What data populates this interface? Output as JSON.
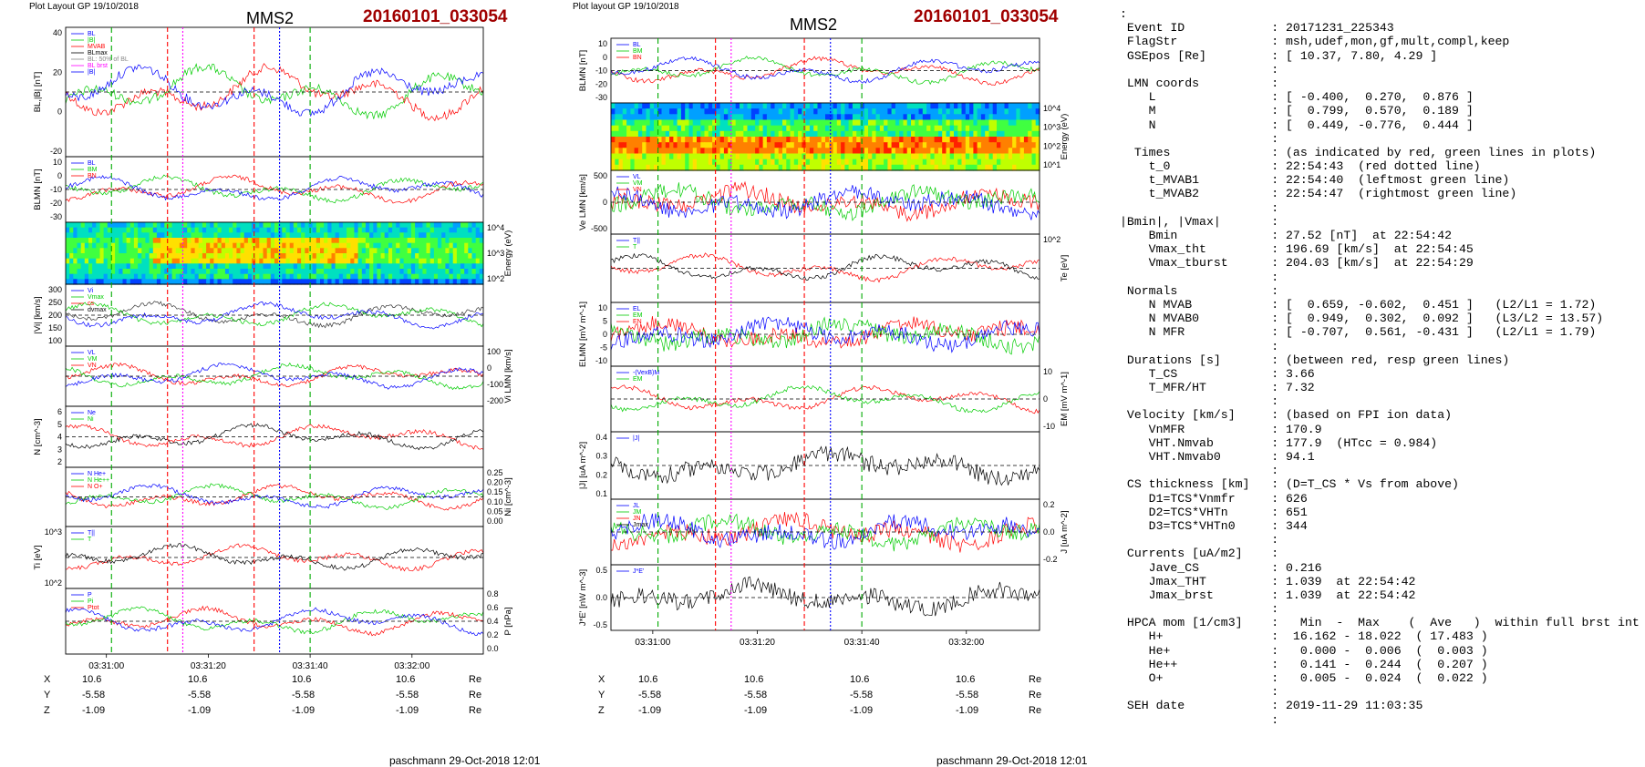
{
  "left_figure": {
    "layout_label": "Plot Layout GP 19/10/2018",
    "spacecraft": "MMS2",
    "event_date": "20160101_033054",
    "footer": "paschmann 29-Oct-2018 12:01",
    "time_ticks": [
      "03:31:00",
      "03:31:20",
      "03:31:40",
      "03:32:00"
    ],
    "coords": [
      {
        "axis": "X",
        "values": [
          "10.6",
          "10.6",
          "10.6",
          "10.6",
          "10.6"
        ],
        "unit": "Re"
      },
      {
        "axis": "Y",
        "values": [
          "-5.58",
          "-5.58",
          "-5.58",
          "-5.58",
          "-5.58"
        ],
        "unit": "Re"
      },
      {
        "axis": "Z",
        "values": [
          "-1.09",
          "-1.09",
          "-1.09",
          "-1.09",
          "-1.09"
        ],
        "unit": "Re"
      }
    ]
  },
  "right_figure": {
    "layout_label": "Plot layout GP 19/10/2018",
    "spacecraft": "MMS2",
    "event_date": "20160101_033054",
    "footer": "paschmann 29-Oct-2018 12:01",
    "time_ticks": [
      "03:31:00",
      "03:31:20",
      "03:31:40",
      "03:32:00"
    ],
    "coords": [
      {
        "axis": "X",
        "values": [
          "10.6",
          "10.6",
          "10.6",
          "10.6",
          "10.6"
        ],
        "unit": "Re"
      },
      {
        "axis": "Y",
        "values": [
          "-5.58",
          "-5.58",
          "-5.58",
          "-5.58",
          "-5.58"
        ],
        "unit": "Re"
      },
      {
        "axis": "Z",
        "values": [
          "-1.09",
          "-1.09",
          "-1.09",
          "-1.09",
          "-1.09"
        ],
        "unit": "Re"
      }
    ]
  },
  "summary_lines": [
    ":",
    " Event ID            : 20171231_225343",
    " FlagStr             : msh,udef,mon,gf,mult,compl,keep",
    " GSEpos [Re]         : [ 10.37, 7.80, 4.29 ]",
    "                     :",
    " LMN coords          :",
    "    L                : [ -0.400,  0.270,  0.876 ]",
    "    M                : [  0.799,  0.570,  0.189 ]",
    "    N                : [  0.449, -0.776,  0.444 ]",
    "                     :",
    "  Times              : (as indicated by red, green lines in plots)",
    "    t_0              : 22:54:43  (red dotted line)",
    "    t_MVAB1          : 22:54:40  (leftmost green line)",
    "    t_MVAB2          : 22:54:47  (rightmost green line)",
    "                     :",
    "|Bmin|, |Vmax|       :",
    "    Bmin             : 27.52 [nT]  at 22:54:42",
    "    Vmax_tht         : 196.69 [km/s]  at 22:54:45",
    "    Vmax_tburst      : 204.03 [km/s]  at 22:54:29",
    "                     :",
    " Normals             :",
    "    N MVAB           : [  0.659, -0.602,  0.451 ]   (L2/L1 = 1.72)",
    "    N MVAB0          : [  0.949,  0.302,  0.092 ]   (L3/L2 = 13.57)",
    "    N MFR            : [ -0.707,  0.561, -0.431 ]   (L2/L1 = 1.79)",
    "                     :",
    " Durations [s]       : (between red, resp green lines)",
    "    T_CS             : 3.66",
    "    T_MFR/HT         : 7.32",
    "                     :",
    " Velocity [km/s]     : (based on FPI ion data)",
    "    VnMFR            : 170.9",
    "    VHT.Nmvab        : 177.9  (HTcc = 0.984)",
    "    VHT.Nmvab0       : 94.1",
    "                     :",
    " CS thickness [km]   : (D=T_CS * Vs from above)",
    "    D1=TCS*Vnmfr     : 626",
    "    D2=TCS*VHTn      : 651",
    "    D3=TCS*VHTn0     : 344",
    "                     :",
    " Currents [uA/m2]    :",
    "    Jave_CS          : 0.216",
    "    Jmax_THT         : 1.039  at 22:54:42",
    "    Jmax_brst        : 1.039  at 22:54:42",
    "                     :",
    " HPCA mom [1/cm3]    :   Min  -  Max    (  Ave   )  within full brst int",
    "    H+               :  16.162 - 18.022  ( 17.483 )",
    "    He+              :   0.000 -  0.006  (  0.003 )",
    "    He++             :   0.141 -  0.244  (  0.207 )",
    "    O+               :   0.005 -  0.024  (  0.022 )",
    "                     :",
    " SEH date            : 2019-11-29 11:03:35",
    "                     :"
  ],
  "chart_data": [
    {
      "type": "line",
      "figure": "left",
      "time_range": [
        "03:30:52",
        "03:32:14"
      ],
      "x_ticks": [
        "03:31:00",
        "03:31:20",
        "03:31:40",
        "03:32:00"
      ],
      "colors": {
        "red": "#ff0000",
        "green": "#00cc00",
        "blue": "#0000ff",
        "black": "#000000",
        "gray": "#888888",
        "magenta": "#ff00ff",
        "cyan": "#00bbff"
      },
      "panels": [
        {
          "id": "bl",
          "ylabel": "BL,|B| [nT]",
          "yticks": [
            "40",
            "20",
            "0",
            "-20"
          ],
          "legend": [
            "BL",
            "|B|",
            "MVAB",
            "BLmax",
            "BL: 50% of BL",
            "BL brst",
            "|B|"
          ]
        },
        {
          "id": "blmn",
          "ylabel": "BLMN [nT]",
          "yticks": [
            "10",
            "0",
            "-10",
            "-20",
            "-30"
          ],
          "legend": [
            "BL",
            "BM",
            "BN"
          ]
        },
        {
          "id": "ion_spec",
          "ylabel": "Energy (eV)",
          "yticks": [
            "10^4",
            "10^3",
            "10^2"
          ],
          "spectrogram": true
        },
        {
          "id": "vi",
          "ylabel": "|Vi| [km/s]",
          "yticks": [
            "300",
            "250",
            "200",
            "150",
            "100"
          ],
          "legend": [
            "Vi",
            "Vmax",
            "cs",
            "dvmax"
          ]
        },
        {
          "id": "vilmn",
          "ylabel": "Vi LMN [km/s]",
          "yticks": [
            "100",
            "0",
            "-100",
            "-200"
          ],
          "legend": [
            "VL",
            "VM",
            "VN"
          ]
        },
        {
          "id": "n",
          "ylabel": "N [cm^-3]",
          "yticks": [
            "6",
            "5",
            "4",
            "3",
            "2"
          ],
          "legend": [
            "Ne",
            "Ni"
          ]
        },
        {
          "id": "comp",
          "ylabel": "Ni [cm^-3]",
          "yticks": [
            "0.25",
            "0.20",
            "0.15",
            "0.10",
            "0.05",
            "0.00"
          ],
          "legend": [
            "N He+",
            "N He++",
            "N O+"
          ]
        },
        {
          "id": "ti",
          "ylabel": "Ti [eV]",
          "yticks": [
            "10^3",
            "10^2"
          ],
          "legend": [
            "T||",
            "T"
          ]
        },
        {
          "id": "p",
          "ylabel": "P [nPa]",
          "yticks": [
            "0.8",
            "0.6",
            "0.4",
            "0.2",
            "0.0"
          ],
          "legend": [
            "P",
            "Pi",
            "Ptot"
          ]
        }
      ]
    },
    {
      "type": "line",
      "figure": "right",
      "time_range": [
        "03:30:52",
        "03:32:14"
      ],
      "x_ticks": [
        "03:31:00",
        "03:31:20",
        "03:31:40",
        "03:32:00"
      ],
      "panels": [
        {
          "id": "blmn",
          "ylabel": "BLMN [nT]",
          "yticks": [
            "10",
            "0",
            "-10",
            "-20",
            "-30"
          ],
          "legend": [
            "BL",
            "BM",
            "BN"
          ]
        },
        {
          "id": "ele_spec",
          "ylabel": "Energy (eV)",
          "yticks": [
            "10^4",
            "10^3",
            "10^2",
            "10^1"
          ],
          "spectrogram": true
        },
        {
          "id": "velmn",
          "ylabel": "Ve LMN [km/s]",
          "yticks": [
            "500",
            "0",
            "-500"
          ],
          "legend": [
            "VL",
            "VM",
            "VN"
          ]
        },
        {
          "id": "te",
          "ylabel": "Te [eV]",
          "yticks": [
            "10^2"
          ],
          "legend": [
            "T||",
            "T"
          ]
        },
        {
          "id": "elmn",
          "ylabel": "ELMN [mV m^-1]",
          "yticks": [
            "10",
            "5",
            "0",
            "-5",
            "-10"
          ],
          "legend": [
            "EL",
            "EM",
            "EN"
          ]
        },
        {
          "id": "em",
          "ylabel": "EM [mV m^-1]",
          "yticks": [
            "10",
            "0",
            "-10"
          ],
          "legend": [
            "-(VexB)M",
            "EM"
          ]
        },
        {
          "id": "jmag",
          "ylabel": "|J| [uA m^-2]",
          "yticks": [
            "0.4",
            "0.3",
            "0.2",
            "0.1"
          ],
          "legend": [
            "|J|"
          ]
        },
        {
          "id": "jlmn",
          "ylabel": "J [uA m^-2]",
          "yticks": [
            "0.2",
            "0.0",
            "-0.2"
          ],
          "legend": [
            "JL",
            "JM",
            "JN",
            "Jmax"
          ]
        },
        {
          "id": "je",
          "ylabel": "J*E' [nW m^-3]",
          "yticks": [
            "0.5",
            "0.0",
            "-0.5"
          ],
          "legend": [
            "J*E'"
          ]
        }
      ]
    }
  ]
}
